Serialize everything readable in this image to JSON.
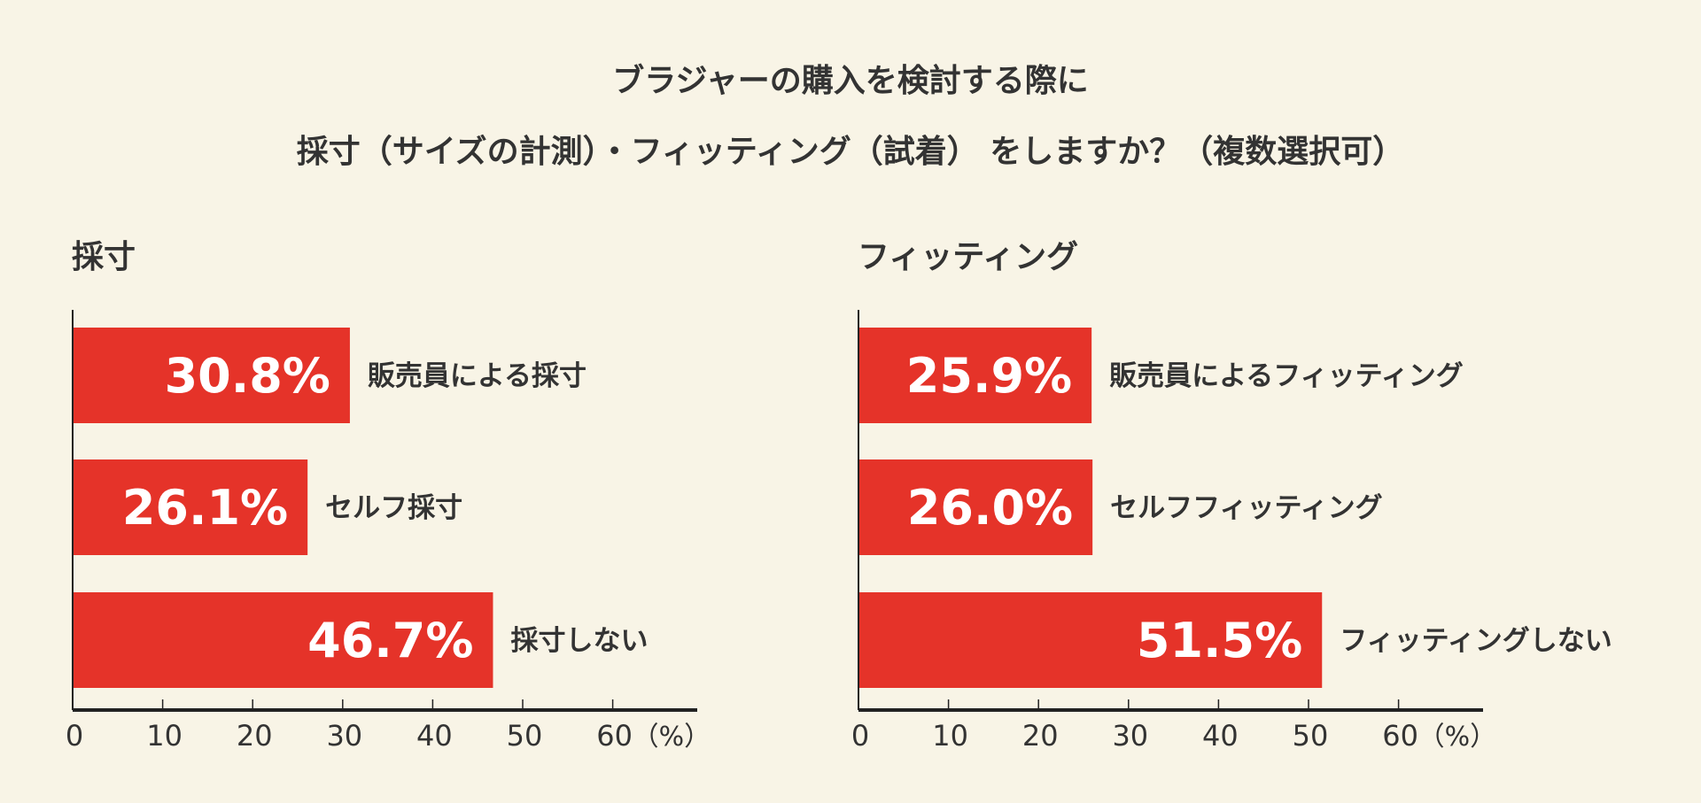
{
  "title_line1": "ブラジャーの購入を検討する際に",
  "title_line2": "採寸（サイズの計測）・フィッティング（試着） をしますか？（複数選択可）",
  "colors": {
    "bar": "#e53329",
    "background": "#f8f4e6",
    "axis": "#222222",
    "text": "#333333"
  },
  "chart_data": [
    {
      "type": "bar",
      "orientation": "horizontal",
      "title": "採寸",
      "categories": [
        "販売員による採寸",
        "セルフ採寸",
        "採寸しない"
      ],
      "values": [
        30.8,
        26.1,
        46.7
      ],
      "data_labels": [
        "30.8%",
        "26.1%",
        "46.7%"
      ],
      "xlim": [
        0,
        60
      ],
      "xticks": [
        "0",
        "10",
        "20",
        "30",
        "40",
        "50",
        "60"
      ],
      "xunit": "（%）"
    },
    {
      "type": "bar",
      "orientation": "horizontal",
      "title": "フィッティング",
      "categories": [
        "販売員によるフィッティング",
        "セルフフィッティング",
        "フィッティングしない"
      ],
      "values": [
        25.9,
        26.0,
        51.5
      ],
      "data_labels": [
        "25.9%",
        "26.0%",
        "51.5%"
      ],
      "xlim": [
        0,
        60
      ],
      "xticks": [
        "0",
        "10",
        "20",
        "30",
        "40",
        "50",
        "60"
      ],
      "xunit": "（%）"
    }
  ]
}
